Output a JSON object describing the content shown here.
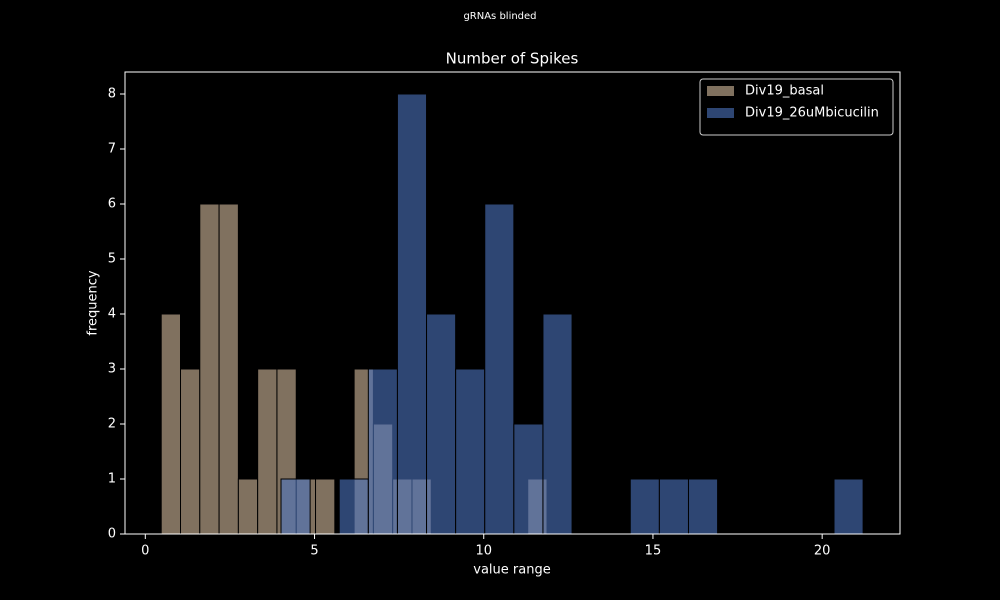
{
  "chart_data": {
    "type": "histogram",
    "suptitle": "gRNAs blinded",
    "title": "Number of Spikes",
    "xlabel": "value range",
    "ylabel": "frequency",
    "xlim": [
      -0.6,
      22.3
    ],
    "xticks": [
      0,
      5,
      10,
      15,
      20
    ],
    "ylim": [
      0,
      8.4
    ],
    "yticks": [
      0,
      1,
      2,
      3,
      4,
      5,
      6,
      7,
      8
    ],
    "legend": "upper right",
    "series": [
      {
        "name": "Div19_basal",
        "color": "#d6bd9f",
        "bins": [
          0.47,
          1.04,
          1.61,
          2.18,
          2.75,
          3.32,
          3.89,
          4.46,
          5.03,
          5.6,
          6.17,
          6.74,
          7.31,
          7.88,
          8.45,
          9.02,
          9.59,
          10.16,
          10.73,
          11.3,
          11.87
        ],
        "values": [
          4,
          3,
          6,
          6,
          1,
          3,
          3,
          1,
          1,
          0,
          3,
          2,
          1,
          1,
          0,
          0,
          0,
          0,
          0,
          1
        ]
      },
      {
        "name": "Div19_26uMbicucilin",
        "color": "#4d74c0",
        "bins": [
          4.01,
          4.87,
          5.73,
          6.59,
          7.45,
          8.31,
          9.17,
          10.03,
          10.89,
          11.75,
          12.61,
          13.47,
          14.33,
          15.19,
          16.05,
          16.91,
          17.77,
          18.63,
          19.49,
          20.35,
          21.21
        ],
        "values": [
          1,
          0,
          1,
          3,
          8,
          4,
          3,
          6,
          2,
          4,
          0,
          0,
          1,
          1,
          1,
          0,
          0,
          0,
          0,
          1
        ]
      }
    ]
  }
}
